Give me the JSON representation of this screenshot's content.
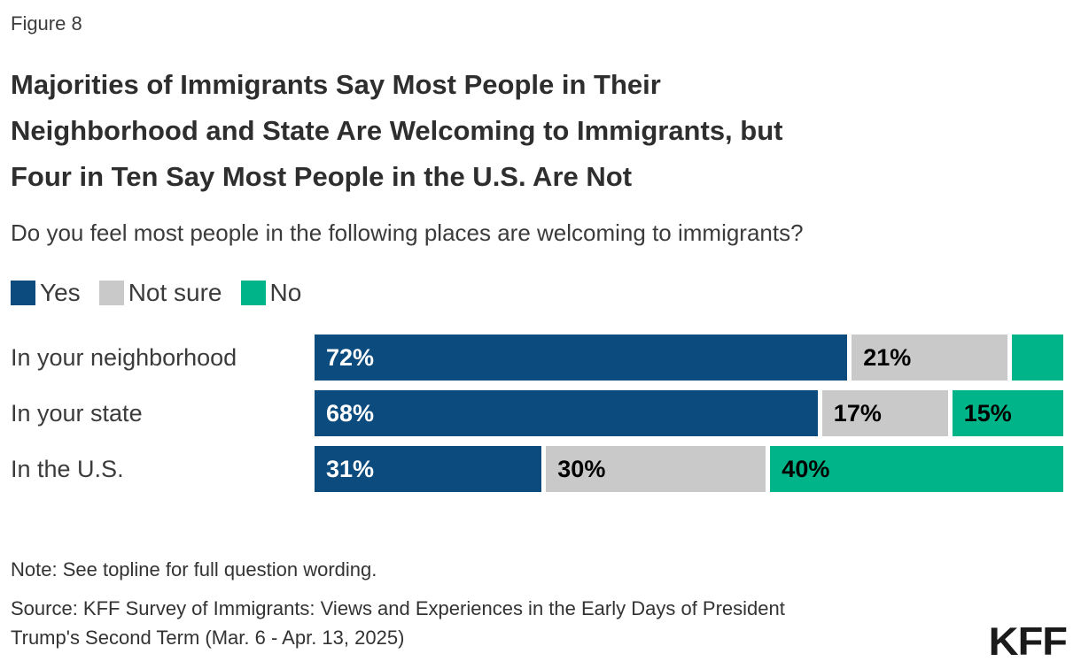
{
  "figure_label": "Figure 8",
  "title_lines": [
    "Majorities of Immigrants Say Most People in Their",
    "Neighborhood and State Are Welcoming to Immigrants, but",
    "Four in Ten Say Most People in the U.S. Are Not"
  ],
  "subtitle": "Do you feel most people in the following places are welcoming to immigrants?",
  "legend": {
    "items": [
      {
        "label": "Yes",
        "color": "#0B4B7D"
      },
      {
        "label": "Not sure",
        "color": "#C9C9C9"
      },
      {
        "label": "No",
        "color": "#00B489"
      }
    ]
  },
  "chart_data": {
    "type": "bar",
    "orientation": "horizontal",
    "stacked": true,
    "title": "Majorities of Immigrants Say Most People in Their Neighborhood and State Are Welcoming to Immigrants, but Four in Ten Say Most People in the U.S. Are Not",
    "question": "Do you feel most people in the following places are welcoming to immigrants?",
    "categories": [
      "In your neighborhood",
      "In your state",
      "In the U.S."
    ],
    "series": [
      {
        "name": "Yes",
        "color": "#0B4B7D",
        "label_color": "#FFFFFF",
        "values": [
          72,
          68,
          31
        ]
      },
      {
        "name": "Not sure",
        "color": "#C9C9C9",
        "label_color": "#000000",
        "values": [
          21,
          17,
          30
        ]
      },
      {
        "name": "No",
        "color": "#00B489",
        "label_color": "#000000",
        "values": [
          7,
          15,
          40
        ]
      }
    ],
    "xlim": [
      0,
      100
    ],
    "grid": false,
    "legend_position": "top-left",
    "rows": [
      {
        "category": "In your neighborhood",
        "segments": [
          {
            "series": "Yes",
            "value": 72,
            "label": "72%"
          },
          {
            "series": "Not sure",
            "value": 21,
            "label": "21%"
          },
          {
            "series": "No",
            "value": 7,
            "label": ""
          }
        ]
      },
      {
        "category": "In your state",
        "segments": [
          {
            "series": "Yes",
            "value": 68,
            "label": "68%"
          },
          {
            "series": "Not sure",
            "value": 17,
            "label": "17%"
          },
          {
            "series": "No",
            "value": 15,
            "label": "15%"
          }
        ]
      },
      {
        "category": "In the U.S.",
        "segments": [
          {
            "series": "Yes",
            "value": 31,
            "label": "31%"
          },
          {
            "series": "Not sure",
            "value": 30,
            "label": "30%"
          },
          {
            "series": "No",
            "value": 40,
            "label": "40%"
          }
        ]
      }
    ]
  },
  "note": "Note: See topline for full question wording.",
  "source_lines": [
    "Source: KFF Survey of Immigrants: Views and Experiences in the Early Days of President",
    "Trump's Second Term (Mar. 6 - Apr. 13, 2025)"
  ],
  "logo": {
    "text": "KFF"
  }
}
